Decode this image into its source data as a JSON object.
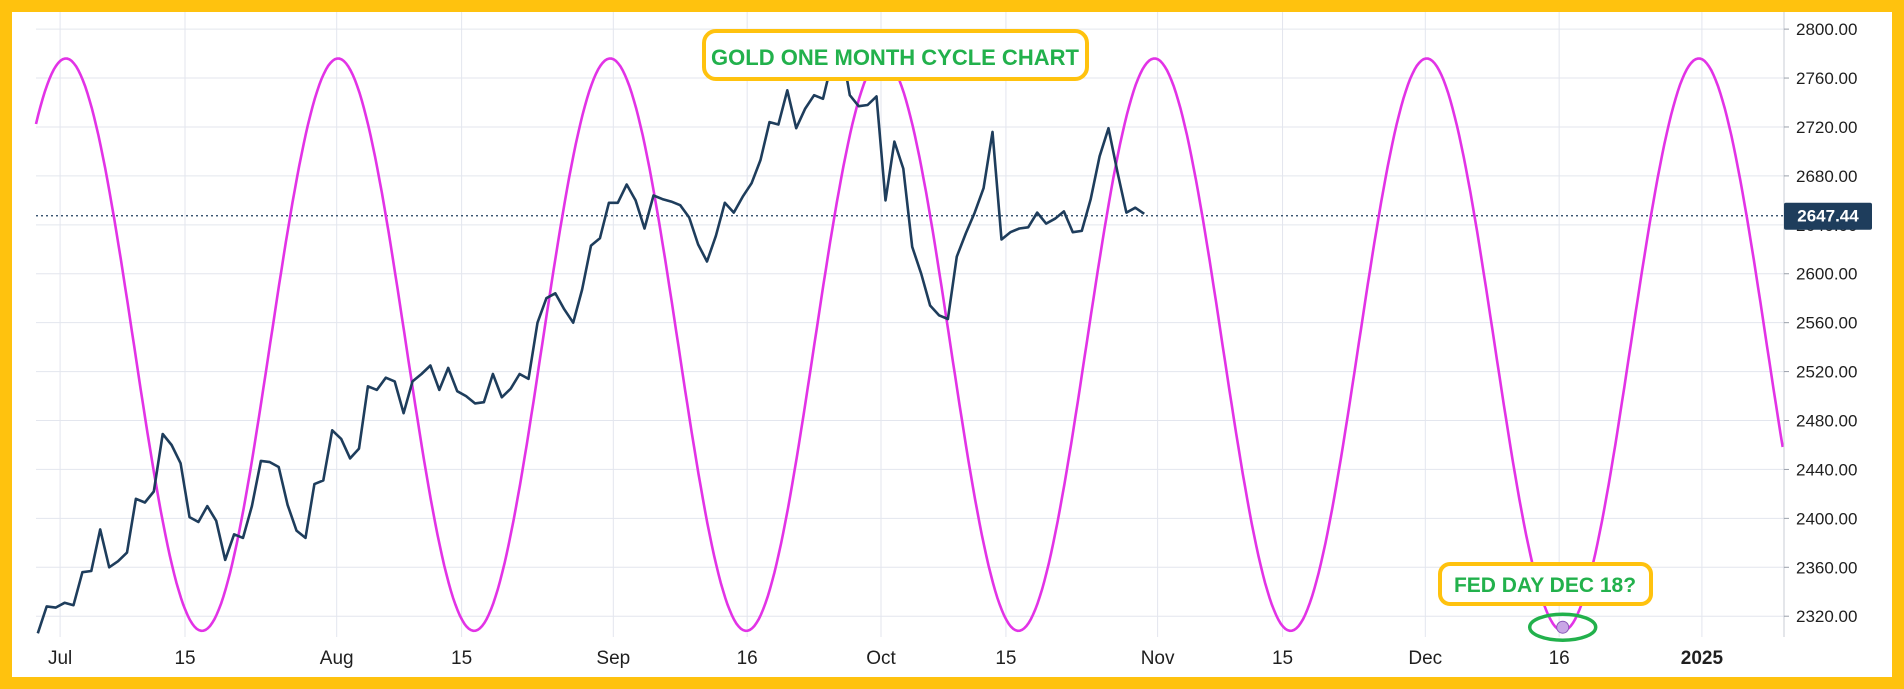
{
  "chart_data": {
    "type": "line",
    "title": "GOLD ONE MONTH CYCLE CHART",
    "annotation": "FED DAY DEC 18?",
    "current_price_label": "2647.44",
    "current_price": 2647.44,
    "y_axis": {
      "ticks": [
        "2800.00",
        "2760.00",
        "2720.00",
        "2680.00",
        "2640.00",
        "2600.00",
        "2560.00",
        "2520.00",
        "2480.00",
        "2440.00",
        "2400.00",
        "2360.00",
        "2320.00"
      ],
      "range": [
        2303,
        2814
      ]
    },
    "x_axis": {
      "ticks": [
        {
          "label": "Jul",
          "day": 0
        },
        {
          "label": "15",
          "day": 14
        },
        {
          "label": "Aug",
          "day": 31
        },
        {
          "label": "15",
          "day": 45
        },
        {
          "label": "Sep",
          "day": 62
        },
        {
          "label": "16",
          "day": 77
        },
        {
          "label": "Oct",
          "day": 92
        },
        {
          "label": "15",
          "day": 106
        },
        {
          "label": "Nov",
          "day": 123
        },
        {
          "label": "15",
          "day": 137
        },
        {
          "label": "Dec",
          "day": 153
        },
        {
          "label": "16",
          "day": 168
        },
        {
          "label": "2025",
          "day": 184,
          "bold": true
        }
      ],
      "range_days": [
        -2.7,
        193.2
      ]
    },
    "grid": true,
    "series": [
      {
        "color": "#1e3d5c",
        "points": [
          [
            -2.5,
            2306
          ],
          [
            -1.5,
            2328
          ],
          [
            -0.5,
            2327
          ],
          [
            0.5,
            2331
          ],
          [
            1.5,
            2329
          ],
          [
            2.5,
            2356
          ],
          [
            3.5,
            2357
          ],
          [
            4.5,
            2391
          ],
          [
            5.5,
            2360
          ],
          [
            6.5,
            2365
          ],
          [
            7.5,
            2372
          ],
          [
            8.5,
            2416
          ],
          [
            9.5,
            2413
          ],
          [
            10.5,
            2422
          ],
          [
            11.5,
            2469
          ],
          [
            12.5,
            2460
          ],
          [
            13.5,
            2445
          ],
          [
            14.5,
            2401
          ],
          [
            15.5,
            2397
          ],
          [
            16.5,
            2410
          ],
          [
            17.5,
            2398
          ],
          [
            18.5,
            2366
          ],
          [
            19.5,
            2387
          ],
          [
            20.5,
            2384
          ],
          [
            21.5,
            2410
          ],
          [
            22.5,
            2447
          ],
          [
            23.5,
            2446
          ],
          [
            24.5,
            2442
          ],
          [
            25.5,
            2411
          ],
          [
            26.5,
            2390
          ],
          [
            27.5,
            2384
          ],
          [
            28.5,
            2428
          ],
          [
            29.5,
            2431
          ],
          [
            30.5,
            2472
          ],
          [
            31.5,
            2465
          ],
          [
            32.5,
            2449
          ],
          [
            33.5,
            2457
          ],
          [
            34.5,
            2508
          ],
          [
            35.5,
            2505
          ],
          [
            36.5,
            2515
          ],
          [
            37.5,
            2512
          ],
          [
            38.5,
            2486
          ],
          [
            39.5,
            2512
          ],
          [
            40.5,
            2518
          ],
          [
            41.5,
            2525
          ],
          [
            42.5,
            2505
          ],
          [
            43.5,
            2523
          ],
          [
            44.5,
            2504
          ],
          [
            45.5,
            2500
          ],
          [
            46.5,
            2494
          ],
          [
            47.5,
            2495
          ],
          [
            48.5,
            2518
          ],
          [
            49.5,
            2499
          ],
          [
            50.5,
            2506
          ],
          [
            51.5,
            2518
          ],
          [
            52.5,
            2514
          ],
          [
            53.5,
            2560
          ],
          [
            54.5,
            2580
          ],
          [
            55.5,
            2584
          ],
          [
            56.5,
            2571
          ],
          [
            57.5,
            2560
          ],
          [
            58.5,
            2587
          ],
          [
            59.5,
            2623
          ],
          [
            60.5,
            2629
          ],
          [
            61.5,
            2658
          ],
          [
            62.5,
            2658
          ],
          [
            63.5,
            2673
          ],
          [
            64.5,
            2660
          ],
          [
            65.5,
            2637
          ],
          [
            66.5,
            2664
          ],
          [
            67.5,
            2661
          ],
          [
            68.5,
            2659
          ],
          [
            69.5,
            2656
          ],
          [
            70.5,
            2646
          ],
          [
            71.5,
            2624
          ],
          [
            72.5,
            2610
          ],
          [
            73.5,
            2631
          ],
          [
            74.5,
            2658
          ],
          [
            75.5,
            2650
          ],
          [
            76.5,
            2663
          ],
          [
            77.5,
            2674
          ],
          [
            78.5,
            2693
          ],
          [
            79.5,
            2724
          ],
          [
            80.5,
            2722
          ],
          [
            81.5,
            2750
          ],
          [
            82.5,
            2719
          ],
          [
            83.5,
            2735
          ],
          [
            84.5,
            2746
          ],
          [
            85.5,
            2743
          ],
          [
            86.5,
            2773
          ],
          [
            87.5,
            2788
          ],
          [
            88.5,
            2746
          ],
          [
            89.5,
            2737
          ],
          [
            90.5,
            2738
          ],
          [
            91.5,
            2745
          ],
          [
            92.5,
            2660
          ],
          [
            93.5,
            2708
          ],
          [
            94.5,
            2686
          ],
          [
            95.5,
            2622
          ],
          [
            96.5,
            2600
          ],
          [
            97.5,
            2574
          ],
          [
            98.5,
            2566
          ],
          [
            99.5,
            2563
          ],
          [
            100.5,
            2614
          ],
          [
            101.5,
            2633
          ],
          [
            102.5,
            2650
          ],
          [
            103.5,
            2670
          ],
          [
            104.5,
            2716
          ],
          [
            105.5,
            2628
          ],
          [
            106.5,
            2634
          ],
          [
            107.5,
            2637
          ],
          [
            108.5,
            2638
          ],
          [
            109.5,
            2650
          ],
          [
            110.5,
            2641
          ],
          [
            111.5,
            2645
          ],
          [
            112.5,
            2651
          ],
          [
            113.5,
            2634
          ],
          [
            114.5,
            2635
          ],
          [
            115.5,
            2661
          ],
          [
            116.5,
            2696
          ],
          [
            117.5,
            2719
          ],
          [
            118.5,
            2683
          ],
          [
            119.5,
            2650
          ],
          [
            120.5,
            2654
          ],
          [
            121.5,
            2649
          ]
        ]
      },
      {
        "color": "#e233e6",
        "type": "sine",
        "min": 2308,
        "max": 2776,
        "period_days": 30.5,
        "trough_day": 168.4
      }
    ],
    "highlight": {
      "day": 168.4,
      "value": 2311
    }
  }
}
